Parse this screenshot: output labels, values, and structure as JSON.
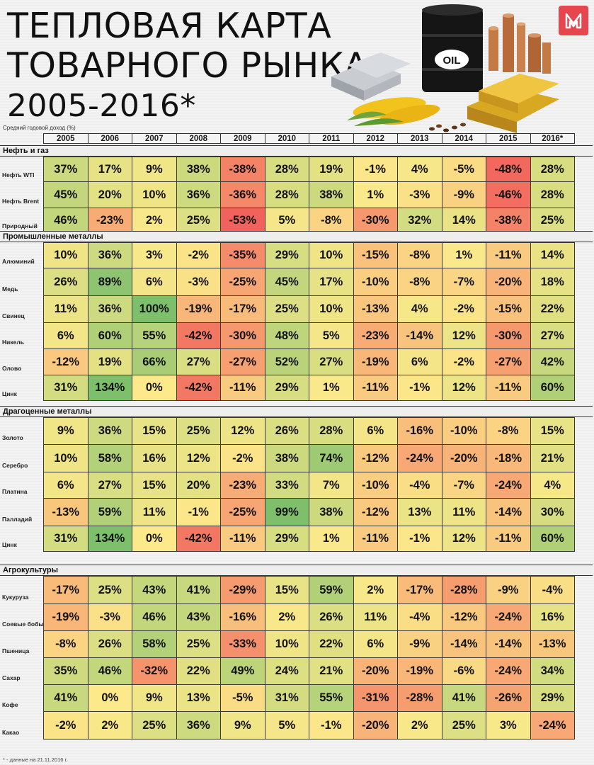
{
  "header": {
    "title_line1": "ТЕПЛОВАЯ КАРТА",
    "title_line2": "ТОВАРНОГО РЫНКА",
    "title_line3": "2005-2016*",
    "subtitle": "Средний годовой доход (%)",
    "barrel_label": "OIL",
    "logo_icon": "brand-logo-icon",
    "logo_color": "#e6474f"
  },
  "footnote": "* - данные на 21.11.2016 г.",
  "colors": {
    "scale_min": "#f2625c",
    "scale_mid": "#fbe98a",
    "scale_max": "#7ebf6c"
  },
  "chart_data": {
    "type": "heatmap",
    "title": "ТЕПЛОВАЯ КАРТА ТОВАРНОГО РЫНКА 2005-2016*",
    "value_unit": "%",
    "columns": [
      "2005",
      "2006",
      "2007",
      "2008",
      "2009",
      "2010",
      "2011",
      "2012",
      "2013",
      "2014",
      "2015",
      "2016*"
    ],
    "groups": [
      {
        "name": "Нефть и газ",
        "rows": [
          {
            "label": "Нефть WTI",
            "values": [
              37,
              17,
              9,
              38,
              -38,
              28,
              19,
              -1,
              4,
              -5,
              -48,
              28
            ]
          },
          {
            "label": "Нефть Brent",
            "values": [
              45,
              20,
              10,
              36,
              -36,
              28,
              38,
              1,
              -3,
              -9,
              -46,
              28
            ]
          },
          {
            "label": "Природный",
            "values": [
              46,
              -23,
              2,
              25,
              -53,
              5,
              -8,
              -30,
              32,
              14,
              -38,
              25
            ]
          }
        ]
      },
      {
        "name": "Промышленные металлы",
        "rows": [
          {
            "label": "Алюминий",
            "values": [
              10,
              36,
              3,
              -2,
              -35,
              29,
              10,
              -15,
              -8,
              1,
              -11,
              14
            ]
          },
          {
            "label": "Медь",
            "values": [
              26,
              89,
              6,
              -3,
              -25,
              45,
              17,
              -10,
              -8,
              -7,
              -20,
              18
            ]
          },
          {
            "label": "Свинец",
            "values": [
              11,
              36,
              100,
              -19,
              -17,
              25,
              10,
              -13,
              4,
              -2,
              -15,
              22
            ]
          },
          {
            "label": "Никель",
            "values": [
              6,
              60,
              55,
              -42,
              -30,
              48,
              5,
              -23,
              -14,
              12,
              -30,
              27
            ]
          },
          {
            "label": "Олово",
            "values": [
              -12,
              19,
              66,
              27,
              -27,
              52,
              27,
              -19,
              6,
              -2,
              -27,
              42
            ]
          },
          {
            "label": "Цинк",
            "values": [
              31,
              134,
              0,
              -42,
              -11,
              29,
              1,
              -11,
              -1,
              12,
              -11,
              60
            ]
          }
        ]
      },
      {
        "name": "Драгоценные металлы",
        "rows": [
          {
            "label": "Золото",
            "values": [
              9,
              36,
              15,
              25,
              12,
              26,
              28,
              6,
              -16,
              -10,
              -8,
              15
            ]
          },
          {
            "label": "Серебро",
            "values": [
              10,
              58,
              16,
              12,
              -2,
              38,
              74,
              -12,
              -24,
              -20,
              -18,
              21
            ]
          },
          {
            "label": "Платина",
            "values": [
              6,
              27,
              15,
              20,
              -23,
              33,
              7,
              -10,
              -4,
              -7,
              -24,
              4
            ]
          },
          {
            "label": "Палладий",
            "values": [
              -13,
              59,
              11,
              -1,
              -25,
              99,
              38,
              -12,
              13,
              11,
              -14,
              30
            ]
          },
          {
            "label": "Цинк",
            "values": [
              31,
              134,
              0,
              -42,
              -11,
              29,
              1,
              -11,
              -1,
              12,
              -11,
              60
            ]
          }
        ]
      },
      {
        "name": "Агрокультуры",
        "rows": [
          {
            "label": "Кукуруза",
            "values": [
              -17,
              25,
              43,
              41,
              -29,
              15,
              59,
              2,
              -17,
              -28,
              -9,
              -4
            ]
          },
          {
            "label": "Соевые бобы",
            "values": [
              -19,
              -3,
              46,
              43,
              -16,
              2,
              26,
              11,
              -4,
              -12,
              -24,
              16
            ]
          },
          {
            "label": "Пшеница",
            "values": [
              -8,
              26,
              58,
              25,
              -33,
              10,
              22,
              6,
              -9,
              -14,
              -14,
              -13
            ]
          },
          {
            "label": "Сахар",
            "values": [
              35,
              46,
              -32,
              22,
              49,
              24,
              21,
              -20,
              -19,
              -6,
              -24,
              34
            ]
          },
          {
            "label": "Кофе",
            "values": [
              41,
              0,
              9,
              13,
              -5,
              31,
              55,
              -31,
              -28,
              41,
              -26,
              29
            ]
          },
          {
            "label": "Какао",
            "values": [
              -2,
              2,
              25,
              36,
              9,
              5,
              -1,
              -20,
              2,
              25,
              3,
              -24
            ]
          }
        ]
      }
    ]
  }
}
